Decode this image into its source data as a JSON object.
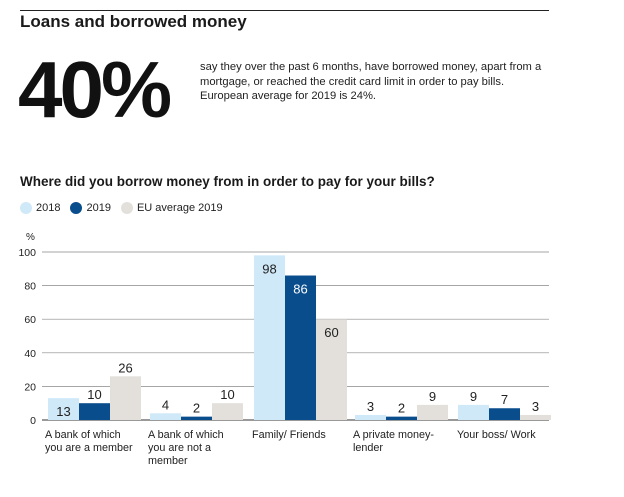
{
  "section_title": "Loans and borrowed money",
  "stat": {
    "value": "40%",
    "description": "say they over the past 6 months, have borrowed money, apart from a mortgage, or reached the credit card limit in order to pay bills. European average for 2019 is 24%."
  },
  "colors": {
    "2018": "#cfe9f9",
    "2019": "#0a4d8c",
    "eu": "#e3e0dc"
  },
  "chart_data": {
    "type": "bar",
    "title": "Where did you borrow money from in order to pay for your bills?",
    "ylabel": "%",
    "ylim": [
      0,
      100
    ],
    "yticks": [
      0,
      20,
      40,
      60,
      80,
      100
    ],
    "ytick_labels": [
      "0",
      "20",
      "40",
      "60",
      "80",
      "100"
    ],
    "categories": [
      "A bank of which you are a member",
      "A bank of which you are not a member",
      "Family/ Friends",
      "A private money- lender",
      "Your boss/ Work"
    ],
    "series": [
      {
        "name": "2018",
        "values": [
          13,
          4,
          98,
          3,
          9
        ],
        "labels": [
          "13",
          "4",
          "98",
          "3",
          "9"
        ]
      },
      {
        "name": "2019",
        "values": [
          10,
          2,
          86,
          2,
          7
        ],
        "labels": [
          "10",
          "2",
          "86",
          "2",
          "7"
        ]
      },
      {
        "name": "EU average 2019",
        "values": [
          26,
          10,
          60,
          9,
          3
        ],
        "labels": [
          "26",
          "10",
          "60",
          "9",
          "3"
        ]
      }
    ],
    "legend": "top-left",
    "grid": true
  }
}
